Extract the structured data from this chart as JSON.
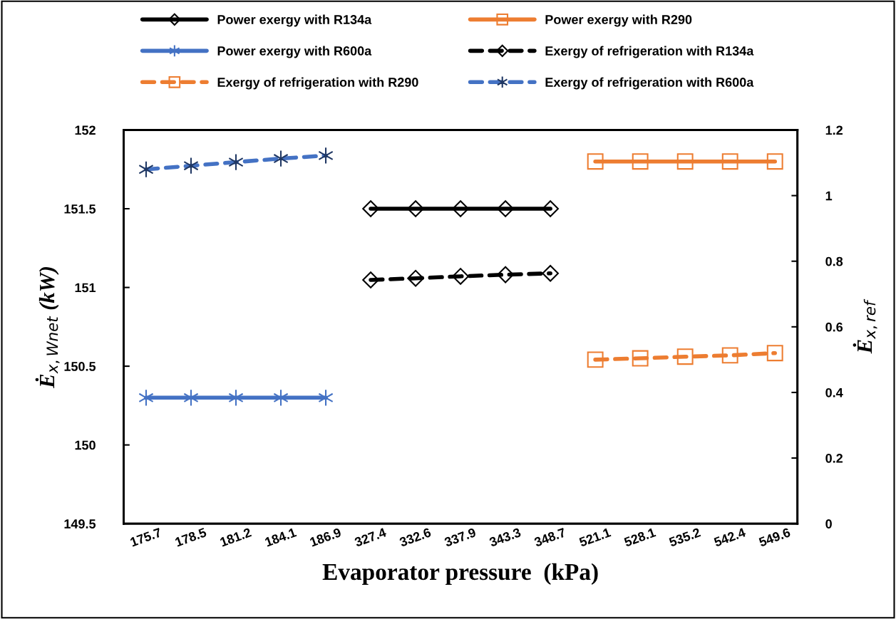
{
  "chart_data": {
    "type": "line",
    "xlabel": "Evaporator pressure  (kPa)",
    "ylabel": "Ė$_{x,Wnet}$ (kW)",
    "y2label": "Ė$_{x,ref}$",
    "categories": [
      "175.7",
      "178.5",
      "181.2",
      "184.1",
      "186.9",
      "327.4",
      "332.6",
      "337.9",
      "343.3",
      "348.7",
      "521.1",
      "528.1",
      "535.2",
      "542.4",
      "549.6"
    ],
    "ylim": [
      149.5,
      152
    ],
    "yticks": [
      149.5,
      150,
      150.5,
      151,
      151.5,
      152
    ],
    "y2lim": [
      0,
      1.2
    ],
    "y2ticks": [
      0,
      0.2,
      0.4,
      0.6,
      0.8,
      1,
      1.2
    ],
    "grid": false,
    "legend": "top",
    "series": [
      {
        "name": "Power exergy with R134a",
        "color": "#000000",
        "marker": "diamond",
        "line_style": "solid",
        "values": [
          null,
          null,
          null,
          null,
          null,
          151.5,
          151.5,
          151.5,
          151.5,
          151.5,
          null,
          null,
          null,
          null,
          null
        ]
      },
      {
        "name": "Power exergy with R290",
        "color": "#ed7d31",
        "marker": "square",
        "line_style": "solid",
        "values": [
          null,
          null,
          null,
          null,
          null,
          null,
          null,
          null,
          null,
          null,
          151.8,
          151.8,
          151.8,
          151.8,
          151.8
        ]
      },
      {
        "name": "Power exergy with R600a",
        "color": "#4472c4",
        "marker": "cross",
        "line_style": "solid",
        "values": [
          150.3,
          150.3,
          150.3,
          150.3,
          150.3,
          null,
          null,
          null,
          null,
          null,
          null,
          null,
          null,
          null,
          null
        ]
      },
      {
        "name": "Exergy of refrigeration with R134a",
        "color": "#000000",
        "marker": "diamond",
        "line_style": "dashed",
        "axis": "y2",
        "values": [
          null,
          null,
          null,
          null,
          null,
          0.743,
          0.748,
          0.754,
          0.759,
          0.763,
          null,
          null,
          null,
          null,
          null
        ]
      },
      {
        "name": "Exergy of refrigeration with R290",
        "color": "#ed7d31",
        "marker": "square",
        "line_style": "dashed",
        "axis": "y2",
        "values": [
          null,
          null,
          null,
          null,
          null,
          null,
          null,
          null,
          null,
          null,
          0.5,
          0.504,
          0.509,
          0.513,
          0.52
        ]
      },
      {
        "name": "Exergy of refrigeration with R600a",
        "color": "#4472c4",
        "marker": "cross",
        "line_style": "dashed",
        "axis": "y2",
        "values": [
          1.08,
          1.091,
          1.102,
          1.113,
          1.122,
          null,
          null,
          null,
          null,
          null,
          null,
          null,
          null,
          null,
          null
        ]
      }
    ]
  }
}
